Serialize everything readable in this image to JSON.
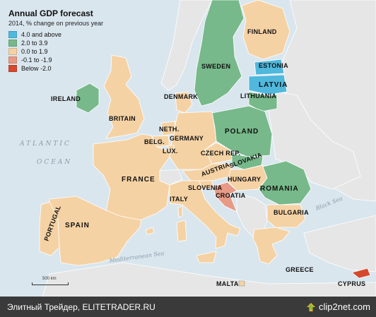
{
  "legend": {
    "title": "Annual GDP forecast",
    "subtitle": "2014, % change on previous year",
    "items": [
      {
        "label": "4.0 and above",
        "color": "#4fb8dc"
      },
      {
        "label": "2.0 to 3.9",
        "color": "#77b98a"
      },
      {
        "label": "0.0 to 1.9",
        "color": "#f5d2a4"
      },
      {
        "label": "-0.1 to -1.9",
        "color": "#e89a86"
      },
      {
        "label": "Below -2.0",
        "color": "#d6482d"
      }
    ]
  },
  "countries": {
    "finland": "FINLAND",
    "sweden": "SWEDEN",
    "estonia": "ESTONIA",
    "latvia": "LATVIA",
    "lithuania": "LITHUANIA",
    "denmark": "DENMARK",
    "ireland": "IRELAND",
    "britain": "BRITAIN",
    "neth": "NETH.",
    "belg": "BELG.",
    "lux": "LUX.",
    "germany": "GERMANY",
    "poland": "POLAND",
    "czech": "CZECH REP.",
    "slovakia": "SLOVAKIA",
    "austria": "AUSTRIA",
    "hungary": "HUNGARY",
    "romania": "ROMANIA",
    "france": "FRANCE",
    "slovenia": "SLOVENIA",
    "croatia": "CROATIA",
    "italy": "ITALY",
    "bulgaria": "BULGARIA",
    "portugal": "PORTUGAL",
    "spain": "SPAIN",
    "greece": "GREECE",
    "malta": "MALTA",
    "cyprus": "CYPRUS"
  },
  "seas": {
    "atlantic": "ATLANTIC",
    "ocean": "OCEAN",
    "mediterranean": "Mediterranean Sea",
    "black": "Black Sea"
  },
  "scale_label": "500 km",
  "footer": {
    "left": "Элитный Трейдер, ELITETRADER.RU",
    "right": "clip2net.com"
  },
  "colors": {
    "sea": "#d9e6ee",
    "land_other": "#e6e6e6",
    "border": "#ffffff",
    "footer_bg": "#3a3a3a"
  }
}
